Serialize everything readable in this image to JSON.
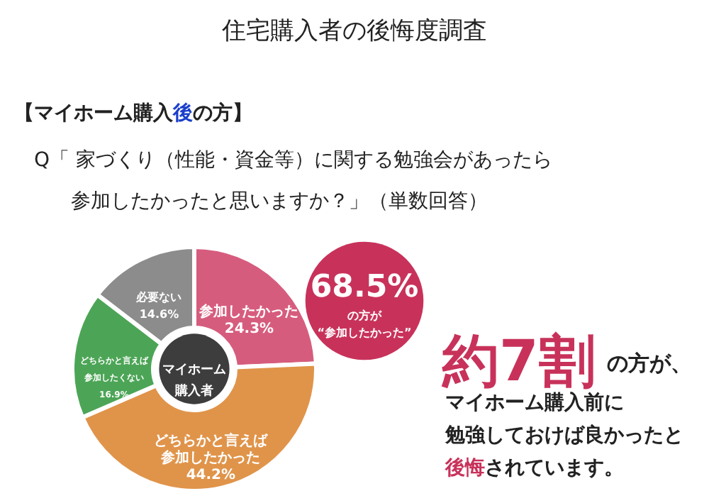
{
  "chart_data": {
    "type": "donut",
    "title": "住宅購入者の後悔度調査",
    "categories": [
      "参加したかった",
      "どちらかと言えば参加したかった",
      "どちらかと言えば参加したくない",
      "必要ない"
    ],
    "values": [
      24.3,
      44.2,
      16.9,
      14.6
    ],
    "colors": [
      "#d65c7d",
      "#e0944a",
      "#4ca556",
      "#8c8c8c"
    ],
    "value_labels": [
      "24.3%",
      "44.2%",
      "16.9%",
      "14.6%"
    ],
    "annotations": [
      "【マイホーム購入",
      "後",
      "の方】",
      "Q「 家づくり（性能・資金等）に関する勉強会があったら",
      "参加したかったと思いますか？」（単数回答）",
      "マイホーム購入者",
      "68.5%",
      "の方が",
      "“参加したかった”",
      "約7割",
      "の方が、",
      "マイホーム購入前に",
      "勉強しておけば良かったと",
      "後悔",
      "されています。"
    ]
  }
}
